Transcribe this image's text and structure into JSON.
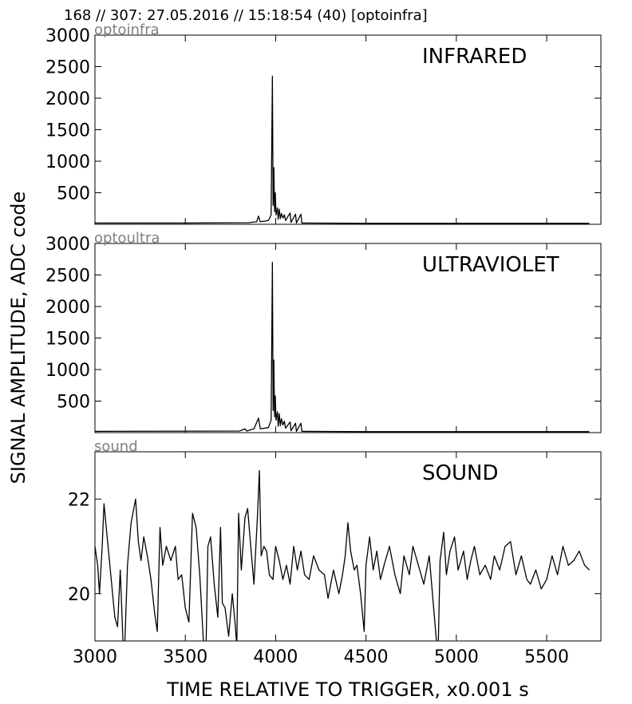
{
  "header": "168 // 307:   27.05.2016 // 15:18:54 (40)  [optoinfra]",
  "ylabel": "SIGNAL AMPLITUDE,  ADC code",
  "chart_data": [
    {
      "type": "line",
      "title": "INFRARED",
      "label": "optoinfra",
      "color": "#000000",
      "grid": false,
      "xlim": [
        3000,
        5800
      ],
      "xticks": [
        3000,
        3500,
        4000,
        4500,
        5000,
        5500
      ],
      "ylim": [
        0,
        3000
      ],
      "yticks": [
        500,
        1000,
        1500,
        2000,
        2500,
        3000
      ],
      "x": [
        3000,
        3500,
        3850,
        3895,
        3905,
        3915,
        3960,
        3975,
        3982,
        3986,
        3990,
        3994,
        3998,
        4002,
        4010,
        4014,
        4020,
        4026,
        4032,
        4040,
        4048,
        4055,
        4080,
        4085,
        4110,
        4115,
        4140,
        4145,
        4500,
        5000,
        5736
      ],
      "values": [
        20,
        20,
        25,
        40,
        130,
        40,
        60,
        150,
        2350,
        300,
        900,
        200,
        500,
        150,
        260,
        80,
        240,
        90,
        170,
        100,
        150,
        60,
        180,
        30,
        160,
        20,
        160,
        20,
        15,
        15,
        15
      ]
    },
    {
      "type": "line",
      "title": "ULTRAVIOLET",
      "label": "optoultra",
      "color": "#000000",
      "grid": false,
      "xlim": [
        3000,
        5800
      ],
      "xticks": [
        3000,
        3500,
        4000,
        4500,
        5000,
        5500
      ],
      "ylim": [
        0,
        3000
      ],
      "yticks": [
        500,
        1000,
        1500,
        2000,
        2500,
        3000
      ],
      "x": [
        3000,
        3800,
        3830,
        3840,
        3880,
        3905,
        3915,
        3960,
        3975,
        3982,
        3986,
        3990,
        3994,
        3998,
        4002,
        4010,
        4014,
        4020,
        4026,
        4032,
        4040,
        4048,
        4055,
        4080,
        4085,
        4110,
        4115,
        4140,
        4145,
        4500,
        5736
      ],
      "values": [
        20,
        25,
        60,
        25,
        60,
        230,
        60,
        80,
        200,
        2700,
        350,
        1150,
        250,
        580,
        200,
        330,
        100,
        300,
        110,
        220,
        120,
        180,
        70,
        170,
        30,
        150,
        20,
        150,
        20,
        15,
        15
      ]
    },
    {
      "type": "line",
      "title": "SOUND",
      "label": "sound",
      "color": "#000000",
      "grid": false,
      "xlabel": "TIME RELATIVE TO TRIGGER,   x0.001 s",
      "xlim": [
        3000,
        5800
      ],
      "xticks": [
        3000,
        3500,
        4000,
        4500,
        5000,
        5500
      ],
      "ylim": [
        19,
        23
      ],
      "yticks": [
        20,
        22
      ],
      "x": [
        3000,
        3015,
        3025,
        3040,
        3050,
        3065,
        3090,
        3110,
        3125,
        3140,
        3155,
        3165,
        3180,
        3200,
        3225,
        3240,
        3255,
        3270,
        3290,
        3310,
        3330,
        3345,
        3360,
        3375,
        3395,
        3420,
        3445,
        3460,
        3480,
        3500,
        3520,
        3540,
        3560,
        3580,
        3600,
        3615,
        3625,
        3640,
        3660,
        3680,
        3695,
        3705,
        3720,
        3740,
        3760,
        3775,
        3785,
        3795,
        3810,
        3830,
        3845,
        3860,
        3880,
        3900,
        3910,
        3920,
        3935,
        3950,
        3965,
        3985,
        4000,
        4020,
        4040,
        4060,
        4080,
        4100,
        4120,
        4140,
        4160,
        4185,
        4210,
        4240,
        4270,
        4290,
        4320,
        4350,
        4370,
        4385,
        4400,
        4415,
        4435,
        4450,
        4470,
        4490,
        4500,
        4520,
        4540,
        4560,
        4580,
        4600,
        4630,
        4660,
        4690,
        4710,
        4740,
        4760,
        4790,
        4820,
        4850,
        4870,
        4890,
        4900,
        4910,
        4930,
        4945,
        4965,
        4990,
        5010,
        5040,
        5060,
        5080,
        5100,
        5130,
        5160,
        5190,
        5210,
        5240,
        5270,
        5300,
        5330,
        5360,
        5390,
        5410,
        5440,
        5470,
        5500,
        5530,
        5560,
        5590,
        5620,
        5650,
        5680,
        5710,
        5736
      ],
      "values": [
        21.0,
        20.6,
        20.0,
        21.0,
        21.9,
        21.3,
        20.3,
        19.5,
        19.3,
        20.5,
        19.0,
        18.9,
        20.6,
        21.5,
        22.0,
        21.1,
        20.7,
        21.2,
        20.8,
        20.3,
        19.6,
        19.2,
        21.4,
        20.6,
        21.0,
        20.7,
        21.0,
        20.3,
        20.4,
        19.7,
        19.4,
        21.7,
        21.4,
        20.4,
        19.0,
        18.9,
        21.0,
        21.2,
        20.2,
        19.5,
        21.4,
        19.8,
        19.7,
        19.1,
        20.0,
        19.4,
        18.9,
        21.7,
        20.5,
        21.6,
        21.8,
        21.1,
        20.2,
        21.7,
        22.6,
        20.8,
        21.0,
        20.9,
        20.4,
        20.3,
        21.0,
        20.7,
        20.3,
        20.6,
        20.2,
        21.0,
        20.5,
        20.9,
        20.4,
        20.3,
        20.8,
        20.5,
        20.4,
        19.9,
        20.5,
        20.0,
        20.4,
        20.8,
        21.5,
        20.9,
        20.5,
        20.6,
        20.0,
        19.2,
        20.6,
        21.2,
        20.5,
        20.9,
        20.3,
        20.6,
        21.0,
        20.4,
        20.0,
        20.8,
        20.4,
        21.0,
        20.6,
        20.2,
        20.8,
        19.9,
        19.0,
        18.9,
        20.7,
        21.3,
        20.4,
        20.9,
        21.2,
        20.5,
        20.9,
        20.3,
        20.7,
        21.0,
        20.4,
        20.6,
        20.3,
        20.8,
        20.5,
        21.0,
        21.1,
        20.4,
        20.8,
        20.3,
        20.2,
        20.5,
        20.1,
        20.3,
        20.8,
        20.4,
        21.0,
        20.6,
        20.7,
        20.9,
        20.6,
        20.5
      ]
    }
  ]
}
